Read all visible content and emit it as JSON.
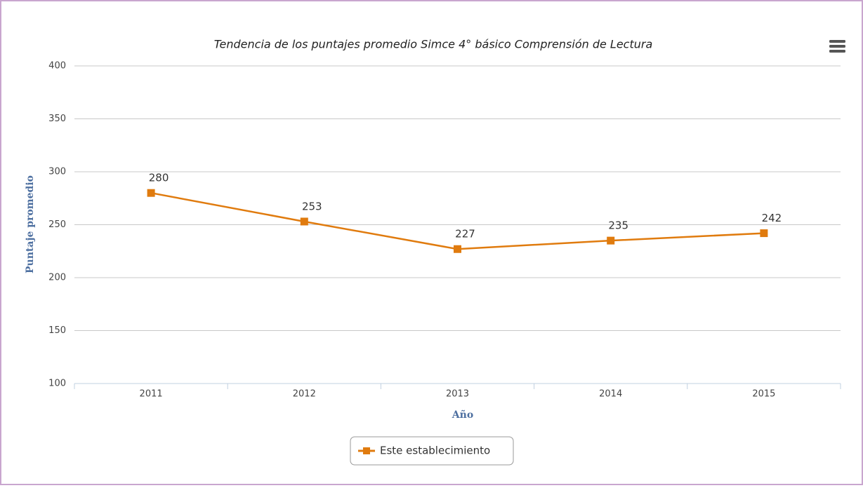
{
  "chart_data": {
    "type": "line",
    "title": "Tendencia de los puntajes promedio Simce 4° básico Comprensión de Lectura",
    "x_label": "Año",
    "y_label": "Puntaje promedio",
    "categories": [
      "2011",
      "2012",
      "2013",
      "2014",
      "2015"
    ],
    "series": [
      {
        "name": "Este establecimiento",
        "color": "#e07b0e",
        "values": [
          280,
          253,
          227,
          235,
          242
        ]
      }
    ],
    "ylim": [
      100,
      400
    ],
    "yticks": [
      100,
      150,
      200,
      250,
      300,
      350,
      400
    ],
    "grid": true,
    "legend": "bottom"
  }
}
